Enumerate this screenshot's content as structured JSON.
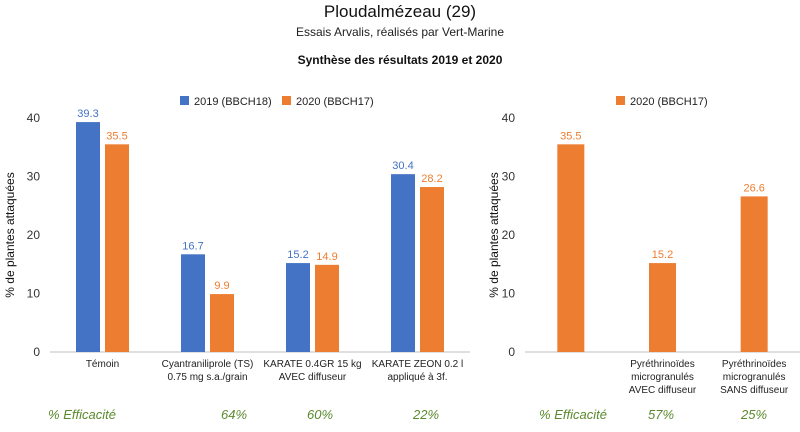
{
  "header": {
    "title": "Ploudalmézeau (29)",
    "subtitle": "Essais Arvalis, réalisés par Vert-Marine",
    "heading": "Synthèse des résultats 2019 et 2020"
  },
  "colors": {
    "series_2019": "#4472c4",
    "series_2020": "#ed7d31",
    "efficacy": "#5a8a2e"
  },
  "chart_data": [
    {
      "type": "bar",
      "ylabel": "% de plantes attaquées",
      "ylim": [
        0,
        40
      ],
      "yticks": [
        0,
        10,
        20,
        30,
        40
      ],
      "grid": false,
      "legend_position": "top",
      "categories": [
        [
          "Témoin"
        ],
        [
          "Cyantraniliprole (TS)",
          "0.75 mg s.a./grain"
        ],
        [
          "KARATE 0.4GR 15 kg",
          "AVEC diffuseur"
        ],
        [
          "KARATE ZEON 0.2 l",
          "appliqué à 3f."
        ]
      ],
      "series": [
        {
          "name": "2019 (BBCH18)",
          "color": "#4472c4",
          "values": [
            39.3,
            16.7,
            15.2,
            30.4
          ],
          "labels": [
            "39.3",
            "16.7",
            "15.2",
            "30.4"
          ]
        },
        {
          "name": "2020 (BBCH17)",
          "color": "#ed7d31",
          "values": [
            35.5,
            9.9,
            14.9,
            28.2
          ],
          "labels": [
            "35.5",
            "9.9",
            "14.9",
            "28.2"
          ]
        }
      ],
      "efficacy_label": "% Efficacité",
      "efficacy": [
        "64%",
        "60%",
        "22%"
      ]
    },
    {
      "type": "bar",
      "ylabel": "% de plantes attaquées",
      "ylim": [
        0,
        40
      ],
      "yticks": [
        0,
        10,
        20,
        30,
        40
      ],
      "grid": false,
      "legend_position": "top",
      "categories": [
        [],
        [
          "Pyréthrinoïdes",
          "microgranulés",
          "AVEC diffuseur"
        ],
        [
          "Pyréthrinoïdes",
          "microgranulés",
          "SANS diffuseur"
        ]
      ],
      "series": [
        {
          "name": "2020 (BBCH17)",
          "color": "#ed7d31",
          "values": [
            35.5,
            15.2,
            26.6
          ],
          "labels": [
            "35.5",
            "15.2",
            "26.6"
          ]
        }
      ],
      "efficacy_label": "% Efficacité",
      "efficacy": [
        "57%",
        "25%"
      ]
    }
  ]
}
